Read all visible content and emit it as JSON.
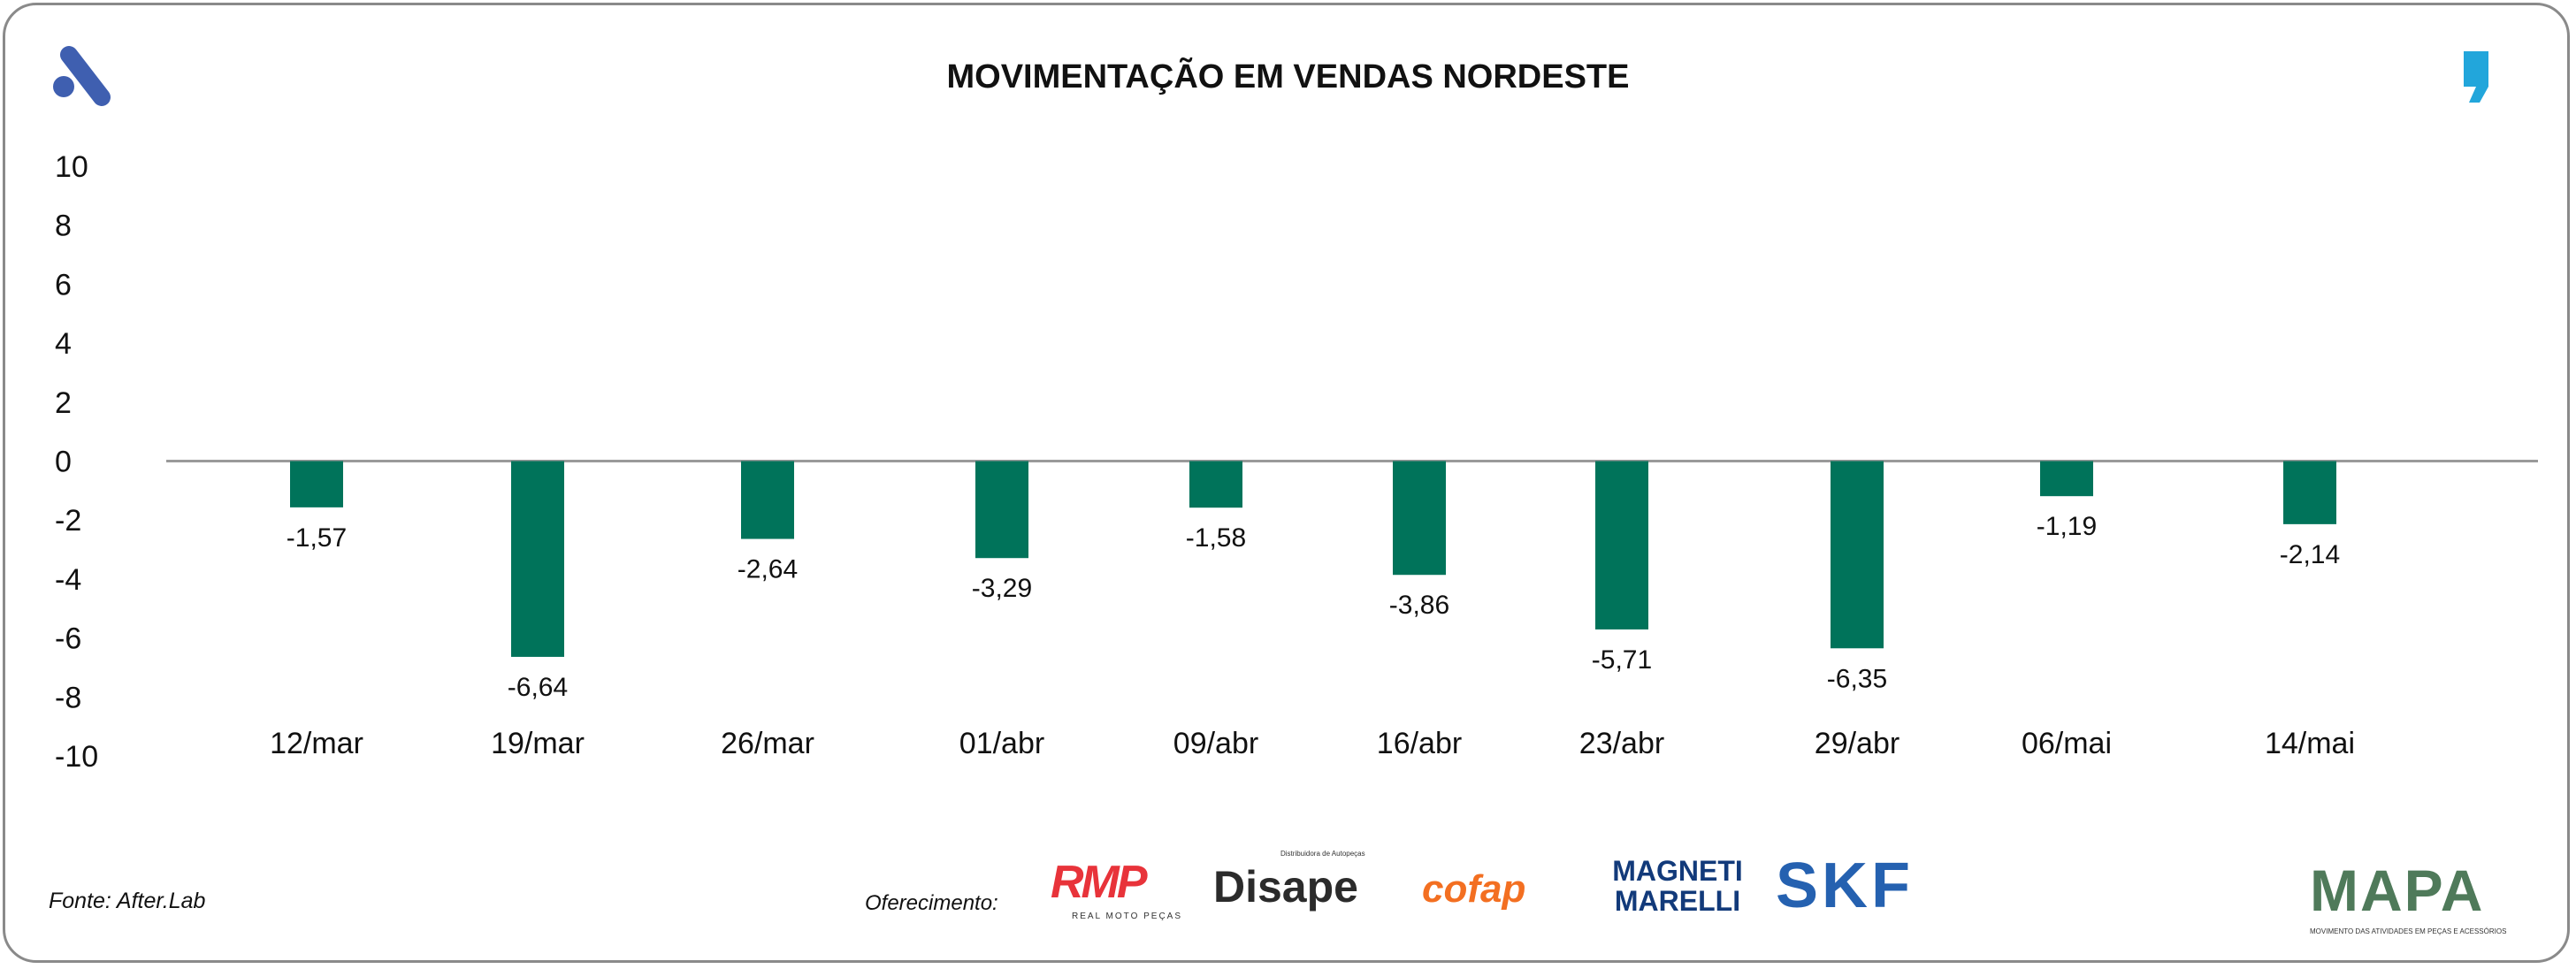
{
  "chart_data": {
    "type": "bar",
    "title": "MOVIMENTAÇÃO EM VENDAS NORDESTE",
    "categories": [
      "12/mar",
      "19/mar",
      "26/mar",
      "01/abr",
      "09/abr",
      "16/abr",
      "23/abr",
      "29/abr",
      "06/mai",
      "14/mai"
    ],
    "values": [
      -1.57,
      -6.64,
      -2.64,
      -3.29,
      -1.58,
      -3.86,
      -5.71,
      -6.35,
      -1.19,
      -2.14
    ],
    "value_labels": [
      "-1,57",
      "-6,64",
      "-2,64",
      "-3,29",
      "-1,58",
      "-3,86",
      "-5,71",
      "-6,35",
      "-1,19",
      "-2,14"
    ],
    "ylim": [
      -10,
      10
    ],
    "yticks": [
      10,
      8,
      6,
      4,
      2,
      0,
      -2,
      -4,
      -6,
      -8,
      -10
    ],
    "xlabel": "",
    "ylabel": "",
    "grid": false,
    "bar_color": "#00735a"
  },
  "footer": {
    "source": "Fonte: After.Lab",
    "sponsor_label": "Oferecimento:",
    "sponsors": [
      "RMP",
      "Disape",
      "cofap",
      "MAGNETI MARELLI",
      "SKF"
    ],
    "rmp_sub": "REAL MOTO PEÇAS",
    "disape_sub": "Distribuidora de Autopeças",
    "brand": "MAPA",
    "brand_sub": "MOVIMENTO DAS ATIVIDADES EM PEÇAS E ACESSÓRIOS"
  }
}
